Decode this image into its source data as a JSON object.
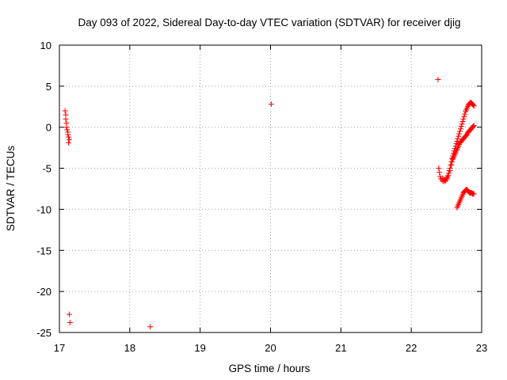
{
  "chart_data": {
    "type": "scatter",
    "title": "Day 093 of 2022, Sidereal Day-to-day VTEC variation (SDTVAR) for receiver djig",
    "xlabel": "GPS time / hours",
    "ylabel": "SDTVAR / TECUs",
    "xlim": [
      17,
      23
    ],
    "ylim": [
      -25,
      10
    ],
    "x_ticks": [
      17,
      18,
      19,
      20,
      21,
      22,
      23
    ],
    "x_tick_labels": [
      "17",
      "18",
      "19",
      "20",
      "21",
      "22",
      "23"
    ],
    "y_ticks": [
      10,
      5,
      0,
      -5,
      -10,
      -15,
      -20,
      -25
    ],
    "y_tick_labels": [
      "10",
      "5",
      "0",
      "-5",
      "-10",
      "-15",
      "-20",
      "-25"
    ],
    "grid": true,
    "marker": "+",
    "color": "#ff0000",
    "series": [
      {
        "x": [
          17.08,
          17.09,
          17.09,
          17.1,
          17.1,
          17.11,
          17.12,
          17.12,
          17.13,
          17.14,
          17.13,
          17.14,
          17.15,
          18.29,
          20.01,
          22.38,
          22.39,
          22.4,
          22.41,
          22.42,
          22.44,
          22.46,
          22.48,
          22.5,
          22.51,
          22.52,
          22.53,
          22.54,
          22.55,
          22.56,
          22.57,
          22.58,
          22.59,
          22.6,
          22.61,
          22.62,
          22.63,
          22.64,
          22.65,
          22.66,
          22.67,
          22.68,
          22.69,
          22.7,
          22.71,
          22.72,
          22.73,
          22.74,
          22.75,
          22.76,
          22.77,
          22.78,
          22.79,
          22.8,
          22.81,
          22.82,
          22.83,
          22.84,
          22.85,
          22.86,
          22.87,
          22.88,
          22.89,
          22.45,
          22.47,
          22.49,
          22.51,
          22.53,
          22.55,
          22.57,
          22.58,
          22.59,
          22.6,
          22.61,
          22.62,
          22.63,
          22.64,
          22.65,
          22.66,
          22.67,
          22.68,
          22.69,
          22.7,
          22.71,
          22.72,
          22.73,
          22.74,
          22.75,
          22.76,
          22.77,
          22.78,
          22.79,
          22.8,
          22.81,
          22.82,
          22.83,
          22.84,
          22.85,
          22.86,
          22.87,
          22.88,
          22.89,
          22.65,
          22.66,
          22.67,
          22.68,
          22.69,
          22.7,
          22.71,
          22.72,
          22.73,
          22.74,
          22.75,
          22.76,
          22.77,
          22.78,
          22.79,
          22.8,
          22.81,
          22.82,
          22.83,
          22.84,
          22.85,
          22.86,
          22.87,
          22.88,
          22.89
        ],
        "y": [
          2.0,
          1.5,
          1.0,
          0.5,
          0.0,
          -0.3,
          -0.6,
          -0.9,
          -1.2,
          -1.5,
          -1.9,
          -22.8,
          -23.8,
          -24.3,
          2.8,
          5.8,
          -5.0,
          -5.5,
          -6.0,
          -6.3,
          -6.5,
          -6.6,
          -6.5,
          -6.3,
          -6.1,
          -5.9,
          -5.6,
          -5.3,
          -5.0,
          -4.6,
          -4.2,
          -3.8,
          -3.5,
          -3.2,
          -2.9,
          -2.6,
          -2.3,
          -2.0,
          -1.7,
          -1.4,
          -1.1,
          -0.8,
          -0.5,
          -0.2,
          0.1,
          0.4,
          0.7,
          1.0,
          1.3,
          1.6,
          1.9,
          2.1,
          2.3,
          2.5,
          2.7,
          2.8,
          2.9,
          3.0,
          3.0,
          2.9,
          2.8,
          2.7,
          2.6,
          -6.2,
          -6.4,
          -6.5,
          -6.3,
          -5.9,
          -5.3,
          -4.6,
          -4.2,
          -3.9,
          -3.7,
          -3.5,
          -3.3,
          -3.1,
          -2.9,
          -2.7,
          -2.5,
          -2.3,
          -2.1,
          -1.9,
          -1.8,
          -1.7,
          -1.6,
          -1.5,
          -1.4,
          -1.3,
          -1.2,
          -1.1,
          -1.0,
          -0.9,
          -0.7,
          -0.6,
          -0.5,
          -0.4,
          -0.3,
          -0.2,
          -0.1,
          0.0,
          0.1,
          0.2,
          -9.8,
          -9.6,
          -9.4,
          -9.2,
          -9.0,
          -8.8,
          -8.6,
          -8.4,
          -8.2,
          -8.0,
          -7.9,
          -7.8,
          -7.7,
          -7.6,
          -7.6,
          -7.7,
          -7.8,
          -7.9,
          -8.0,
          -8.0,
          -8.0,
          -8.0,
          -8.1,
          -8.1,
          -8.1
        ]
      }
    ]
  }
}
